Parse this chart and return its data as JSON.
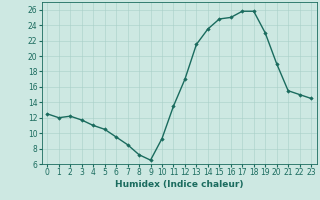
{
  "title": "",
  "xlabel": "Humidex (Indice chaleur)",
  "ylabel": "",
  "x_values": [
    0,
    1,
    2,
    3,
    4,
    5,
    6,
    7,
    8,
    9,
    10,
    11,
    12,
    13,
    14,
    15,
    16,
    17,
    18,
    19,
    20,
    21,
    22,
    23
  ],
  "y_values": [
    12.5,
    12.0,
    12.2,
    11.7,
    11.0,
    10.5,
    9.5,
    8.5,
    7.2,
    6.5,
    9.3,
    13.5,
    17.0,
    21.5,
    23.5,
    24.8,
    25.0,
    25.8,
    25.8,
    23.0,
    19.0,
    15.5,
    15.0,
    14.5
  ],
  "ylim": [
    6,
    27
  ],
  "yticks": [
    6,
    8,
    10,
    12,
    14,
    16,
    18,
    20,
    22,
    24,
    26
  ],
  "xlim": [
    -0.5,
    23.5
  ],
  "line_color": "#1a6b5e",
  "marker_color": "#1a6b5e",
  "bg_color": "#cde8e2",
  "grid_color": "#a8cfc8",
  "axis_color": "#1a6b5e",
  "tick_label_color": "#1a6b5e",
  "xlabel_color": "#1a6b5e",
  "marker": "D",
  "markersize": 1.8,
  "linewidth": 1.0,
  "label_fontsize": 6.5,
  "tick_fontsize": 5.5
}
